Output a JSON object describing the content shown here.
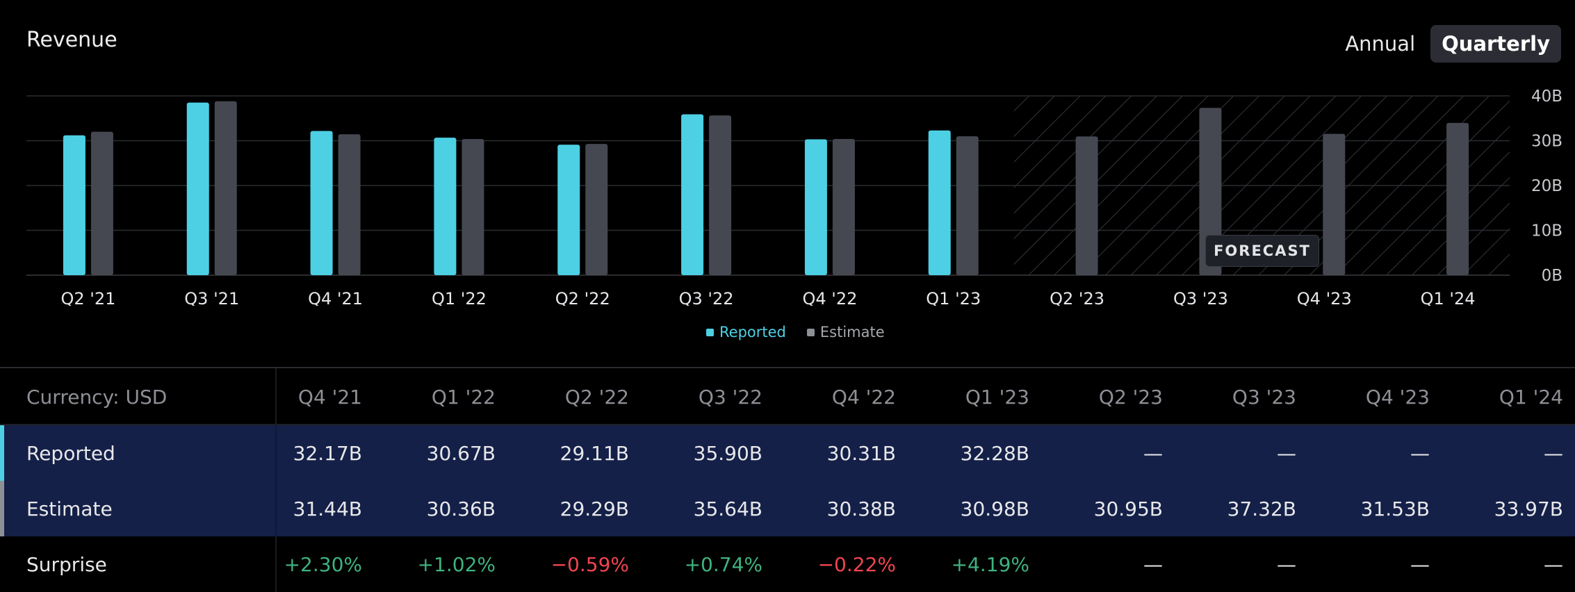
{
  "header": {
    "title": "Revenue",
    "toggle": {
      "annual_label": "Annual",
      "quarterly_label": "Quarterly",
      "active": "quarterly"
    }
  },
  "colors": {
    "reported": "#4dd0e4",
    "estimate": "#454851",
    "positive": "#3fb27f",
    "negative": "#f0454f",
    "background": "#000000"
  },
  "chart_data": {
    "type": "bar",
    "title": "Revenue",
    "categories": [
      "Q2 '21",
      "Q3 '21",
      "Q4 '21",
      "Q1 '22",
      "Q2 '22",
      "Q3 '22",
      "Q4 '22",
      "Q1 '23",
      "Q2 '23",
      "Q3 '23",
      "Q4 '23",
      "Q1 '24"
    ],
    "series": [
      {
        "name": "Reported",
        "values": [
          31.2,
          38.5,
          32.17,
          30.67,
          29.11,
          35.9,
          30.31,
          32.28,
          null,
          null,
          null,
          null
        ]
      },
      {
        "name": "Estimate",
        "values": [
          32.0,
          38.8,
          31.44,
          30.36,
          29.29,
          35.64,
          30.38,
          30.98,
          30.95,
          37.32,
          31.53,
          33.97
        ]
      }
    ],
    "ylim": [
      0,
      40
    ],
    "yticks": [
      "0B",
      "10B",
      "20B",
      "30B",
      "40B"
    ],
    "ytick_values": [
      0,
      10,
      20,
      30,
      40
    ],
    "forecast_start_index": 8,
    "forecast_label": "FORECAST",
    "legend": [
      "Reported",
      "Estimate"
    ],
    "legend_position": "bottom-center",
    "grid": true
  },
  "table": {
    "currency_label": "Currency: USD",
    "columns": [
      "Q4 '21",
      "Q1 '22",
      "Q2 '22",
      "Q3 '22",
      "Q4 '22",
      "Q1 '23",
      "Q2 '23",
      "Q3 '23",
      "Q4 '23",
      "Q1 '24"
    ],
    "rows": [
      {
        "label": "Reported",
        "values": [
          "32.17B",
          "30.67B",
          "29.11B",
          "35.90B",
          "30.31B",
          "32.28B",
          "—",
          "—",
          "—",
          "—"
        ]
      },
      {
        "label": "Estimate",
        "values": [
          "31.44B",
          "30.36B",
          "29.29B",
          "35.64B",
          "30.38B",
          "30.98B",
          "30.95B",
          "37.32B",
          "31.53B",
          "33.97B"
        ]
      },
      {
        "label": "Surprise",
        "values": [
          "+2.30%",
          "+1.02%",
          "−0.59%",
          "+0.74%",
          "−0.22%",
          "+4.19%",
          "—",
          "—",
          "—",
          "—"
        ]
      }
    ]
  }
}
